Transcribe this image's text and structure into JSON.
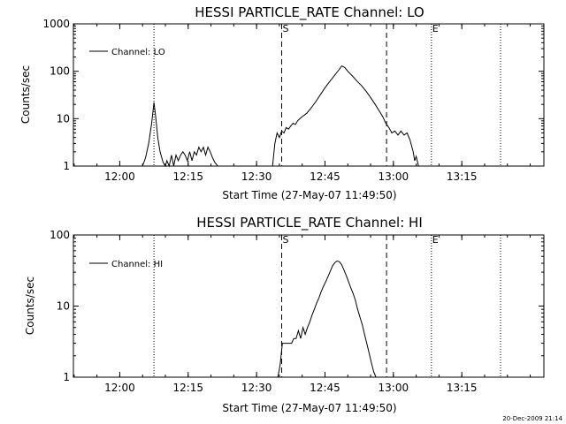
{
  "chart_data": [
    {
      "type": "line",
      "title": "HESSI PARTICLE_RATE Channel: LO",
      "xlabel": "Start Time (27-May-07 11:49:50)",
      "ylabel": "Counts/sec",
      "y_scale": "log",
      "ylim": [
        1,
        1000
      ],
      "y_ticks": [
        1,
        10,
        100,
        1000
      ],
      "y_tick_labels": [
        "1",
        "10",
        "100",
        "1000"
      ],
      "xlim": [
        "11:49:50",
        "13:33:00"
      ],
      "x_ticks": [
        "12:00",
        "12:15",
        "12:30",
        "12:45",
        "13:00",
        "13:15"
      ],
      "legend": "top-left",
      "markers": [
        {
          "time": "12:07:30",
          "style": "dotted",
          "label": ""
        },
        {
          "time": "12:35:30",
          "style": "dashed",
          "label": "S"
        },
        {
          "time": "12:58:30",
          "style": "dashed",
          "label": ""
        },
        {
          "time": "13:08:20",
          "style": "dotted",
          "label": "E"
        },
        {
          "time": "13:23:30",
          "style": "dotted",
          "label": ""
        }
      ],
      "series": [
        {
          "name": "Channel: LO",
          "x": [
            "12:05:00",
            "12:05:40",
            "12:06:20",
            "12:07:00",
            "12:07:30",
            "12:07:50",
            "12:08:20",
            "12:08:50",
            "12:09:30",
            "12:10:00",
            "12:10:20",
            "12:10:50",
            "12:11:20",
            "12:11:50",
            "12:12:20",
            "12:12:50",
            "12:13:20",
            "12:13:50",
            "12:14:20",
            "12:14:50",
            "12:15:20",
            "12:15:50",
            "12:16:20",
            "12:16:50",
            "12:17:20",
            "12:17:50",
            "12:18:20",
            "12:18:50",
            "12:19:20",
            "12:19:50",
            "12:20:20",
            "12:20:50",
            "12:21:30",
            "12:33:30",
            "12:34:00",
            "12:34:30",
            "12:35:00",
            "12:35:30",
            "12:36:00",
            "12:36:30",
            "12:37:00",
            "12:37:30",
            "12:38:00",
            "12:38:30",
            "12:39:00",
            "12:39:30",
            "12:40:00",
            "12:41:00",
            "12:42:00",
            "12:43:00",
            "12:44:00",
            "12:45:00",
            "12:46:00",
            "12:47:00",
            "12:48:00",
            "12:48:40",
            "12:49:20",
            "12:50:00",
            "12:51:00",
            "12:52:00",
            "12:53:00",
            "12:54:00",
            "12:55:00",
            "12:56:00",
            "12:57:00",
            "12:57:40",
            "12:58:20",
            "12:59:00",
            "12:59:40",
            "13:00:20",
            "13:01:00",
            "13:01:40",
            "13:02:20",
            "13:03:00",
            "13:03:40",
            "13:04:20",
            "13:04:40",
            "13:05:00",
            "13:05:30"
          ],
          "y": [
            1,
            1.5,
            3,
            8,
            22,
            12,
            4,
            2,
            1.2,
            1,
            1.3,
            1,
            1.7,
            1,
            1.7,
            1.3,
            1.7,
            2,
            1.7,
            1.3,
            2,
            1.3,
            2,
            1.7,
            2.5,
            2,
            2.5,
            1.7,
            2.5,
            2,
            1.5,
            1.2,
            1,
            1,
            3,
            5,
            4,
            5.5,
            5,
            6.5,
            6,
            7,
            8,
            7.5,
            9,
            10,
            11,
            13,
            17,
            23,
            32,
            45,
            60,
            80,
            105,
            130,
            120,
            100,
            80,
            62,
            50,
            38,
            28,
            20,
            14,
            11,
            8,
            6.5,
            5,
            5.5,
            4.5,
            5.5,
            4.5,
            5,
            3.5,
            2,
            1.3,
            1.6,
            1
          ]
        }
      ]
    },
    {
      "type": "line",
      "title": "HESSI PARTICLE_RATE Channel: HI",
      "xlabel": "Start Time (27-May-07 11:49:50)",
      "ylabel": "Counts/sec",
      "y_scale": "log",
      "ylim": [
        1,
        100
      ],
      "y_ticks": [
        1,
        10,
        100
      ],
      "y_tick_labels": [
        "1",
        "10",
        "100"
      ],
      "xlim": [
        "11:49:50",
        "13:33:00"
      ],
      "x_ticks": [
        "12:00",
        "12:15",
        "12:30",
        "12:45",
        "13:00",
        "13:15"
      ],
      "legend": "top-left",
      "markers": [
        {
          "time": "12:07:30",
          "style": "dotted",
          "label": ""
        },
        {
          "time": "12:35:30",
          "style": "dashed",
          "label": "S"
        },
        {
          "time": "12:58:30",
          "style": "dashed",
          "label": ""
        },
        {
          "time": "13:08:20",
          "style": "dotted",
          "label": "E"
        },
        {
          "time": "13:23:30",
          "style": "dotted",
          "label": ""
        }
      ],
      "series": [
        {
          "name": "Channel: HI",
          "x": [
            "12:34:40",
            "12:35:10",
            "12:35:40",
            "12:36:40",
            "12:37:40",
            "12:38:10",
            "12:38:40",
            "12:39:10",
            "12:39:40",
            "12:40:10",
            "12:40:40",
            "12:41:10",
            "12:41:40",
            "12:42:10",
            "12:42:40",
            "12:43:10",
            "12:43:40",
            "12:44:10",
            "12:44:40",
            "12:45:10",
            "12:45:40",
            "12:46:10",
            "12:46:40",
            "12:47:10",
            "12:47:40",
            "12:48:10",
            "12:48:40",
            "12:49:10",
            "12:49:40",
            "12:50:10",
            "12:50:40",
            "12:51:10",
            "12:51:40",
            "12:52:10",
            "12:52:40",
            "12:53:10",
            "12:53:40",
            "12:54:10",
            "12:54:40",
            "12:55:10",
            "12:55:40",
            "12:56:10"
          ],
          "y": [
            1,
            1.5,
            3,
            3,
            3,
            3.5,
            3.5,
            4.5,
            3.5,
            5,
            4,
            5,
            6,
            7.5,
            9,
            11,
            13,
            16,
            19,
            22,
            26,
            31,
            37,
            41,
            43,
            42,
            38,
            32,
            27,
            22,
            18,
            15,
            12,
            9,
            7,
            5.5,
            4,
            3,
            2.2,
            1.6,
            1.2,
            1
          ]
        }
      ]
    }
  ],
  "footer": {
    "stamp": "20-Dec-2009 21:14"
  }
}
